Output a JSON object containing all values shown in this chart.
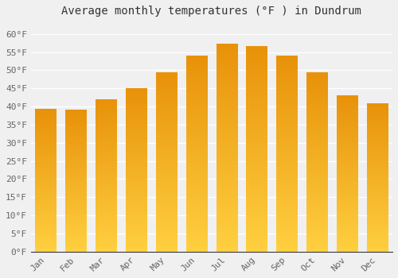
{
  "title": "Average monthly temperatures (°F ) in Dundrum",
  "months": [
    "Jan",
    "Feb",
    "Mar",
    "Apr",
    "May",
    "Jun",
    "Jul",
    "Aug",
    "Sep",
    "Oct",
    "Nov",
    "Dec"
  ],
  "values": [
    39.2,
    39.0,
    42.0,
    45.0,
    49.3,
    54.0,
    57.2,
    56.5,
    54.0,
    49.3,
    43.0,
    40.8
  ],
  "bar_color_top": "#E8920A",
  "bar_color_bottom": "#FFD040",
  "ylim": [
    0,
    63
  ],
  "yticks": [
    0,
    5,
    10,
    15,
    20,
    25,
    30,
    35,
    40,
    45,
    50,
    55,
    60
  ],
  "background_color": "#f0f0f0",
  "grid_color": "#ffffff",
  "title_fontsize": 10,
  "tick_fontsize": 8,
  "bar_width": 0.7,
  "figwidth": 5.0,
  "figheight": 3.5,
  "dpi": 100
}
